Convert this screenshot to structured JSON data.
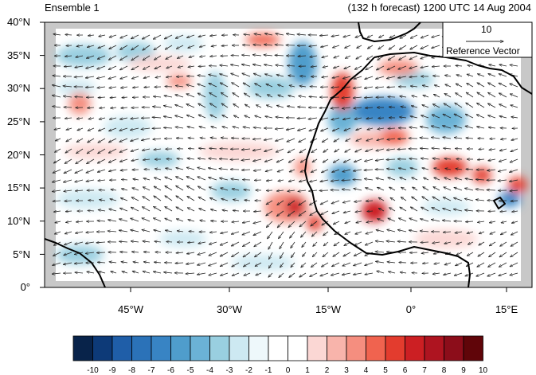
{
  "header": {
    "left_title": "Ensemble 1",
    "right_title": "(132 h forecast) 1200 UTC 14 Aug 2004"
  },
  "map": {
    "lat_labels": [
      "40°N",
      "35°N",
      "30°N",
      "25°N",
      "20°N",
      "15°N",
      "10°N",
      "5°N",
      "0°"
    ],
    "lon_labels": [
      "45°W",
      "30°W",
      "15°W",
      "0°",
      "15°E"
    ],
    "reference_vector": {
      "value": "10",
      "label": "Reference Vector"
    }
  },
  "colorbar": {
    "labels": [
      "-10",
      "-9",
      "-8",
      "-7",
      "-6",
      "-5",
      "-4",
      "-3",
      "-2",
      "-1",
      "0",
      "1",
      "2",
      "3",
      "4",
      "5",
      "6",
      "7",
      "8",
      "9",
      "10"
    ],
    "colors": [
      "#08234a",
      "#0d3a78",
      "#1f5ea8",
      "#2b72b8",
      "#3884c4",
      "#4f9dcc",
      "#6bb2d6",
      "#99cfe0",
      "#cde9f2",
      "#eef8fb",
      "#ffffff",
      "#ffffff",
      "#fbd7d4",
      "#f8b4ab",
      "#f58e7f",
      "#f0634f",
      "#e33c2e",
      "#cc1f23",
      "#ae1420",
      "#8c0d1a",
      "#600509"
    ]
  }
}
